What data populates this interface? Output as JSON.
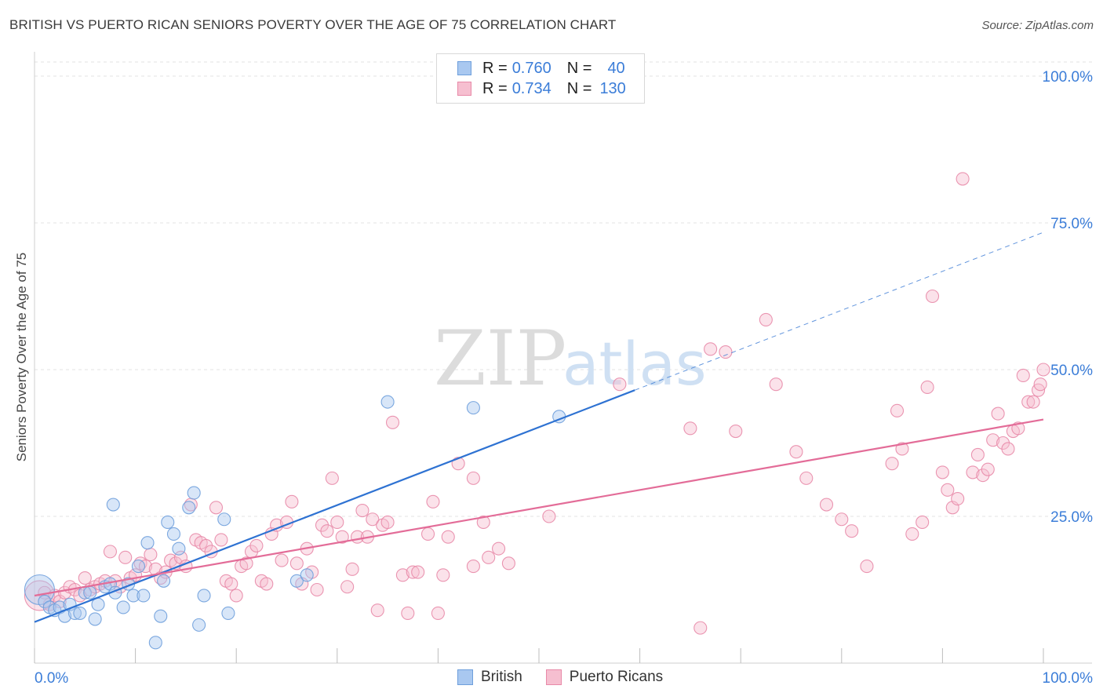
{
  "header": {
    "title": "BRITISH VS PUERTO RICAN SENIORS POVERTY OVER THE AGE OF 75 CORRELATION CHART",
    "source": "Source: ZipAtlas.com"
  },
  "legend": {
    "british": {
      "r_label": "R =",
      "r_value": "0.760",
      "n_label": "N =",
      "n_value": "40"
    },
    "puerto": {
      "r_label": "R =",
      "r_value": "0.734",
      "n_label": "N =",
      "n_value": "130"
    }
  },
  "bottom_legend": {
    "british": "British",
    "puerto": "Puerto Ricans"
  },
  "watermark": {
    "zip": "ZIP",
    "atlas": "atlas"
  },
  "colors": {
    "british_fill": "#a9c8f0",
    "british_stroke": "#6e9fdc",
    "british_line": "#2e72d2",
    "puerto_fill": "#f6bfd0",
    "puerto_stroke": "#e88aa8",
    "puerto_line": "#e36c98",
    "tick_label": "#3b7dd8",
    "grid": "#e3e3e3"
  },
  "chart_data": {
    "type": "scatter",
    "title": "BRITISH VS PUERTO RICAN SENIORS POVERTY OVER THE AGE OF 75 CORRELATION CHART",
    "xlabel": "",
    "ylabel": "Seniors Poverty Over the Age of 75",
    "xlim": [
      0,
      100
    ],
    "ylim": [
      0,
      100
    ],
    "x_tick_labels": [
      {
        "value": 0,
        "label": "0.0%"
      },
      {
        "value": 100,
        "label": "100.0%"
      }
    ],
    "y_tick_labels": [
      {
        "value": 25,
        "label": "25.0%"
      },
      {
        "value": 50,
        "label": "50.0%"
      },
      {
        "value": 75,
        "label": "75.0%"
      },
      {
        "value": 100,
        "label": "100.0%"
      }
    ],
    "x_minor_ticks": [
      0,
      10,
      20,
      30,
      40,
      50,
      60,
      70,
      80,
      90,
      100
    ],
    "y_gridlines": [
      25,
      50,
      75,
      100
    ],
    "series": [
      {
        "name": "British",
        "r": 0.76,
        "n": 40,
        "trend": {
          "x0": 0,
          "y0": 7,
          "x1": 59.5,
          "y1": 46.5
        },
        "points": [
          {
            "x": 0.5,
            "y": 12.5,
            "big": true
          },
          {
            "x": 1,
            "y": 10.5
          },
          {
            "x": 1.5,
            "y": 9.5
          },
          {
            "x": 2,
            "y": 9
          },
          {
            "x": 2.5,
            "y": 9.5
          },
          {
            "x": 3,
            "y": 8
          },
          {
            "x": 3.5,
            "y": 10
          },
          {
            "x": 4,
            "y": 8.5
          },
          {
            "x": 4.5,
            "y": 8.5
          },
          {
            "x": 5,
            "y": 12
          },
          {
            "x": 5.5,
            "y": 12
          },
          {
            "x": 6,
            "y": 7.5
          },
          {
            "x": 6.3,
            "y": 10
          },
          {
            "x": 7,
            "y": 13
          },
          {
            "x": 7.5,
            "y": 13.5
          },
          {
            "x": 7.8,
            "y": 27
          },
          {
            "x": 8,
            "y": 12
          },
          {
            "x": 8.8,
            "y": 9.5
          },
          {
            "x": 9.3,
            "y": 13.5
          },
          {
            "x": 9.8,
            "y": 11.5
          },
          {
            "x": 10.3,
            "y": 16.5
          },
          {
            "x": 10.8,
            "y": 11.5
          },
          {
            "x": 11.2,
            "y": 20.5
          },
          {
            "x": 12,
            "y": 3.5
          },
          {
            "x": 12.5,
            "y": 8
          },
          {
            "x": 12.8,
            "y": 14
          },
          {
            "x": 13.2,
            "y": 24
          },
          {
            "x": 13.8,
            "y": 22
          },
          {
            "x": 14.3,
            "y": 19.5
          },
          {
            "x": 15.3,
            "y": 26.5
          },
          {
            "x": 15.8,
            "y": 29
          },
          {
            "x": 16.3,
            "y": 6.5
          },
          {
            "x": 16.8,
            "y": 11.5
          },
          {
            "x": 18.8,
            "y": 24.5
          },
          {
            "x": 19.2,
            "y": 8.5
          },
          {
            "x": 26,
            "y": 14
          },
          {
            "x": 27,
            "y": 15
          },
          {
            "x": 35,
            "y": 44.5
          },
          {
            "x": 43.5,
            "y": 43.5
          },
          {
            "x": 52,
            "y": 42
          }
        ]
      },
      {
        "name": "Puerto Ricans",
        "r": 0.734,
        "n": 130,
        "trend": {
          "x0": 0,
          "y0": 11.5,
          "x1": 100,
          "y1": 41.5
        },
        "points": [
          {
            "x": 0.5,
            "y": 11.5,
            "big": true
          },
          {
            "x": 1,
            "y": 12
          },
          {
            "x": 1.5,
            "y": 10
          },
          {
            "x": 2,
            "y": 11.5
          },
          {
            "x": 2.5,
            "y": 10.5
          },
          {
            "x": 3,
            "y": 12
          },
          {
            "x": 3.5,
            "y": 13
          },
          {
            "x": 4,
            "y": 12.5
          },
          {
            "x": 4.5,
            "y": 11.5
          },
          {
            "x": 5,
            "y": 14.5
          },
          {
            "x": 5.5,
            "y": 12.5
          },
          {
            "x": 6,
            "y": 13
          },
          {
            "x": 6.5,
            "y": 13.5
          },
          {
            "x": 7,
            "y": 14
          },
          {
            "x": 7.5,
            "y": 19
          },
          {
            "x": 8,
            "y": 14
          },
          {
            "x": 8.5,
            "y": 13
          },
          {
            "x": 9,
            "y": 18
          },
          {
            "x": 9.5,
            "y": 14.5
          },
          {
            "x": 10,
            "y": 15
          },
          {
            "x": 10.5,
            "y": 17
          },
          {
            "x": 11,
            "y": 16.5
          },
          {
            "x": 11.5,
            "y": 18.5
          },
          {
            "x": 12,
            "y": 16
          },
          {
            "x": 12.5,
            "y": 14.5
          },
          {
            "x": 13,
            "y": 15.5
          },
          {
            "x": 13.5,
            "y": 17.5
          },
          {
            "x": 14,
            "y": 17
          },
          {
            "x": 14.5,
            "y": 18
          },
          {
            "x": 15,
            "y": 16.5
          },
          {
            "x": 15.5,
            "y": 27
          },
          {
            "x": 16,
            "y": 21
          },
          {
            "x": 16.5,
            "y": 20.5
          },
          {
            "x": 17,
            "y": 20
          },
          {
            "x": 17.5,
            "y": 19
          },
          {
            "x": 18,
            "y": 26.5
          },
          {
            "x": 18.5,
            "y": 21
          },
          {
            "x": 19,
            "y": 14
          },
          {
            "x": 19.5,
            "y": 13.5
          },
          {
            "x": 20,
            "y": 11.5
          },
          {
            "x": 20.5,
            "y": 16.5
          },
          {
            "x": 21,
            "y": 17
          },
          {
            "x": 21.5,
            "y": 19
          },
          {
            "x": 22,
            "y": 20
          },
          {
            "x": 22.5,
            "y": 14
          },
          {
            "x": 23,
            "y": 13.5
          },
          {
            "x": 23.5,
            "y": 22
          },
          {
            "x": 24,
            "y": 23.5
          },
          {
            "x": 24.5,
            "y": 17.5
          },
          {
            "x": 25,
            "y": 24
          },
          {
            "x": 25.5,
            "y": 27.5
          },
          {
            "x": 26,
            "y": 17
          },
          {
            "x": 26.5,
            "y": 13.5
          },
          {
            "x": 27,
            "y": 19.5
          },
          {
            "x": 27.5,
            "y": 15.5
          },
          {
            "x": 28,
            "y": 12.5
          },
          {
            "x": 28.5,
            "y": 23.5
          },
          {
            "x": 29,
            "y": 22.5
          },
          {
            "x": 29.5,
            "y": 31.5
          },
          {
            "x": 30,
            "y": 24
          },
          {
            "x": 30.5,
            "y": 21.5
          },
          {
            "x": 31,
            "y": 13
          },
          {
            "x": 31.5,
            "y": 16
          },
          {
            "x": 32,
            "y": 21.5
          },
          {
            "x": 32.5,
            "y": 26
          },
          {
            "x": 33,
            "y": 21.5
          },
          {
            "x": 33.5,
            "y": 24.5
          },
          {
            "x": 34,
            "y": 9
          },
          {
            "x": 34.5,
            "y": 23.5
          },
          {
            "x": 35,
            "y": 24
          },
          {
            "x": 35.5,
            "y": 41
          },
          {
            "x": 36.5,
            "y": 15
          },
          {
            "x": 37,
            "y": 8.5
          },
          {
            "x": 37.5,
            "y": 15.5
          },
          {
            "x": 38,
            "y": 15.5
          },
          {
            "x": 39,
            "y": 22
          },
          {
            "x": 39.5,
            "y": 27.5
          },
          {
            "x": 40,
            "y": 8.5
          },
          {
            "x": 40.5,
            "y": 15
          },
          {
            "x": 41,
            "y": 21.5
          },
          {
            "x": 42,
            "y": 34
          },
          {
            "x": 43.5,
            "y": 31.5
          },
          {
            "x": 43.5,
            "y": 16.5
          },
          {
            "x": 44.5,
            "y": 24
          },
          {
            "x": 45,
            "y": 18
          },
          {
            "x": 46,
            "y": 19.5
          },
          {
            "x": 47,
            "y": 17
          },
          {
            "x": 51,
            "y": 25
          },
          {
            "x": 58,
            "y": 47.5
          },
          {
            "x": 65,
            "y": 40
          },
          {
            "x": 66,
            "y": 6
          },
          {
            "x": 67,
            "y": 53.5
          },
          {
            "x": 68.5,
            "y": 53
          },
          {
            "x": 69.5,
            "y": 39.5
          },
          {
            "x": 72.5,
            "y": 58.5
          },
          {
            "x": 73.5,
            "y": 47.5
          },
          {
            "x": 75.5,
            "y": 36
          },
          {
            "x": 76.5,
            "y": 31.5
          },
          {
            "x": 78.5,
            "y": 27
          },
          {
            "x": 80,
            "y": 24.5
          },
          {
            "x": 81,
            "y": 22.5
          },
          {
            "x": 82.5,
            "y": 16.5
          },
          {
            "x": 85,
            "y": 34
          },
          {
            "x": 85.5,
            "y": 43
          },
          {
            "x": 86,
            "y": 36.5
          },
          {
            "x": 87,
            "y": 22
          },
          {
            "x": 88,
            "y": 24
          },
          {
            "x": 88.5,
            "y": 47
          },
          {
            "x": 89,
            "y": 62.5
          },
          {
            "x": 90,
            "y": 32.5
          },
          {
            "x": 90.5,
            "y": 29.5
          },
          {
            "x": 91,
            "y": 26.5
          },
          {
            "x": 91.5,
            "y": 28
          },
          {
            "x": 92,
            "y": 82.5
          },
          {
            "x": 93,
            "y": 32.5
          },
          {
            "x": 93.5,
            "y": 35.5
          },
          {
            "x": 94,
            "y": 32
          },
          {
            "x": 94.5,
            "y": 33
          },
          {
            "x": 95,
            "y": 38
          },
          {
            "x": 95.5,
            "y": 42.5
          },
          {
            "x": 96,
            "y": 37.5
          },
          {
            "x": 96.5,
            "y": 36.5
          },
          {
            "x": 97,
            "y": 39.5
          },
          {
            "x": 97.5,
            "y": 40
          },
          {
            "x": 98,
            "y": 49
          },
          {
            "x": 98.5,
            "y": 44.5
          },
          {
            "x": 99,
            "y": 44.5
          },
          {
            "x": 99.5,
            "y": 46.5
          },
          {
            "x": 99.7,
            "y": 47.5
          },
          {
            "x": 100,
            "y": 50
          }
        ]
      }
    ]
  }
}
